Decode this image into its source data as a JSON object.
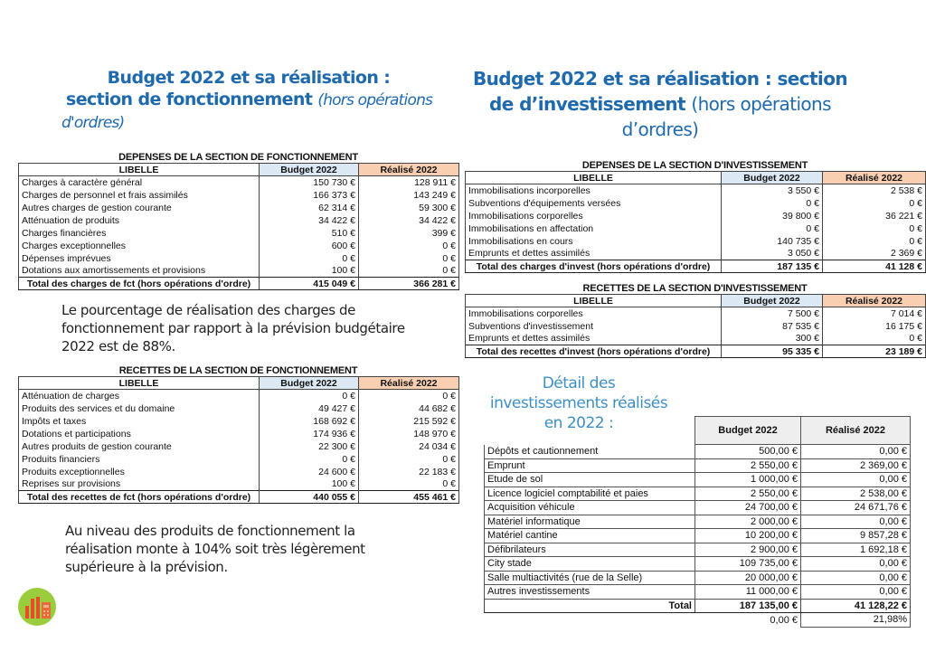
{
  "left_title": {
    "line1": "Budget 2022 et sa réalisation :",
    "line2_bold": "section de fonctionnement",
    "line2_italic": "(hors opérations",
    "line3_italic": "d'ordres)"
  },
  "right_title": {
    "line1": "Budget 2022 et sa réalisation :  section",
    "line2_bold": "de d’investissement",
    "line2_normal": "(hors opérations",
    "line3": "d’ordres)"
  },
  "headers": {
    "libelle": "LIBELLE",
    "budget": "Budget 2022",
    "realise": "Réalisé 2022"
  },
  "dep_fct": {
    "title": "DEPENSES DE LA SECTION DE FONCTIONNEMENT",
    "rows": [
      [
        "Charges à caractère général",
        "150 730 €",
        "128 911 €"
      ],
      [
        "Charges de personnel et frais assimilés",
        "166 373 €",
        "143 249 €"
      ],
      [
        "Autres charges de gestion courante",
        "62 314 €",
        "59 300 €"
      ],
      [
        "Atténuation de produits",
        "34 422 €",
        "34 422 €"
      ],
      [
        "Charges financières",
        "510 €",
        "399 €"
      ],
      [
        "Charges exceptionnelles",
        "600 €",
        "0 €"
      ],
      [
        "Dépenses imprévues",
        "0 €",
        "0 €"
      ],
      [
        "Dotations aux amortissements et provisions",
        "100 €",
        "0 €"
      ]
    ],
    "total": [
      "Total des charges de fct (hors opérations d'ordre)",
      "415 049 €",
      "366 281 €"
    ]
  },
  "para1": "Le pourcentage de réalisation des charges de fonctionnement par rapport à la prévision budgétaire 2022 est de 88%.",
  "rec_fct": {
    "title": "RECETTES DE LA SECTION DE FONCTIONNEMENT",
    "rows": [
      [
        "Atténuation de charges",
        "0 €",
        "0 €"
      ],
      [
        "Produits des services et du domaine",
        "49 427 €",
        "44 682 €"
      ],
      [
        "Impôts et taxes",
        "168 692 €",
        "215 592 €"
      ],
      [
        "Dotations et participations",
        "174 936 €",
        "148 970 €"
      ],
      [
        "Autres produits de gestion courante",
        "22 300 €",
        "24 034 €"
      ],
      [
        "Produits financiers",
        "0 €",
        "0 €"
      ],
      [
        "Produits exceptionnelles",
        "24 600 €",
        "22 183 €"
      ],
      [
        "Reprises sur provisions",
        "100 €",
        "0 €"
      ]
    ],
    "total": [
      "Total des recettes de fct (hors opérations d'ordre)",
      "440 055 €",
      "455 461 €"
    ]
  },
  "para2": "Au niveau des produits de fonctionnement la réalisation monte à 104% soit très légèrement supérieure à la prévision.",
  "dep_inv": {
    "title": "DEPENSES DE LA SECTION D'INVESTISSEMENT",
    "rows": [
      [
        "Immobilisations incorporelles",
        "3 550 €",
        "2 538 €"
      ],
      [
        "Subventions d'équipements versées",
        "0 €",
        "0 €"
      ],
      [
        "Immobilisations corporelles",
        "39 800 €",
        "36 221 €"
      ],
      [
        "Immobilisations en affectation",
        "0 €",
        "0 €"
      ],
      [
        "Immobilisations en cours",
        "140 735 €",
        "0 €"
      ],
      [
        "Emprunts et dettes assimilés",
        "3 050 €",
        "2 369 €"
      ]
    ],
    "total": [
      "Total des charges d'invest (hors opérations d'ordre)",
      "187 135 €",
      "41 128 €"
    ]
  },
  "rec_inv": {
    "title": "RECETTES DE LA SECTION D'INVESTISSEMENT",
    "rows": [
      [
        "Immobilisations corporelles",
        "7 500 €",
        "7 014 €"
      ],
      [
        "Subventions d'investissement",
        "87 535 €",
        "16 175 €"
      ],
      [
        "Emprunts et dettes assimilés",
        "300 €",
        "0 €"
      ]
    ],
    "total": [
      "Total des recettes d'invest (hors opérations d'ordre)",
      "95 335 €",
      "23 189 €"
    ]
  },
  "detail": {
    "subtitle": [
      "Détail des",
      "investissements réalisés",
      "en 2022 :"
    ],
    "rows": [
      [
        "Dépôts et cautionnement",
        "500,00 €",
        "0,00 €"
      ],
      [
        "Emprunt",
        "2 550,00 €",
        "2 369,00 €"
      ],
      [
        "Etude de sol",
        "1 000,00 €",
        "0,00 €"
      ],
      [
        "Licence logiciel comptabilité et paies",
        "2 550,00 €",
        "2 538,00 €"
      ],
      [
        "Acquisition véhicule",
        "24 700,00 €",
        "24 671,76 €"
      ],
      [
        "Matériel informatique",
        "2 000,00 €",
        "0,00 €"
      ],
      [
        "Matériel cantine",
        "10 200,00 €",
        "9 857,28 €"
      ],
      [
        "Défibrilateurs",
        "2 900,00 €",
        "1 692,18 €"
      ],
      [
        "City stade",
        "109 735,00 €",
        "0,00 €"
      ],
      [
        "Salle multiactivités (rue de la Selle)",
        "20 000,00 €",
        "0,00 €"
      ],
      [
        "Autres investissements",
        "11 000,00 €",
        "0,00 €"
      ]
    ],
    "total": [
      "Total",
      "187 135,00 €",
      "41 128,22 €"
    ],
    "extra": [
      "0,00 €",
      "21,98%"
    ]
  },
  "colors": {
    "title": "#1f6aad",
    "budget_header": "#dce9f5",
    "realise_header": "#f8cfb1"
  }
}
